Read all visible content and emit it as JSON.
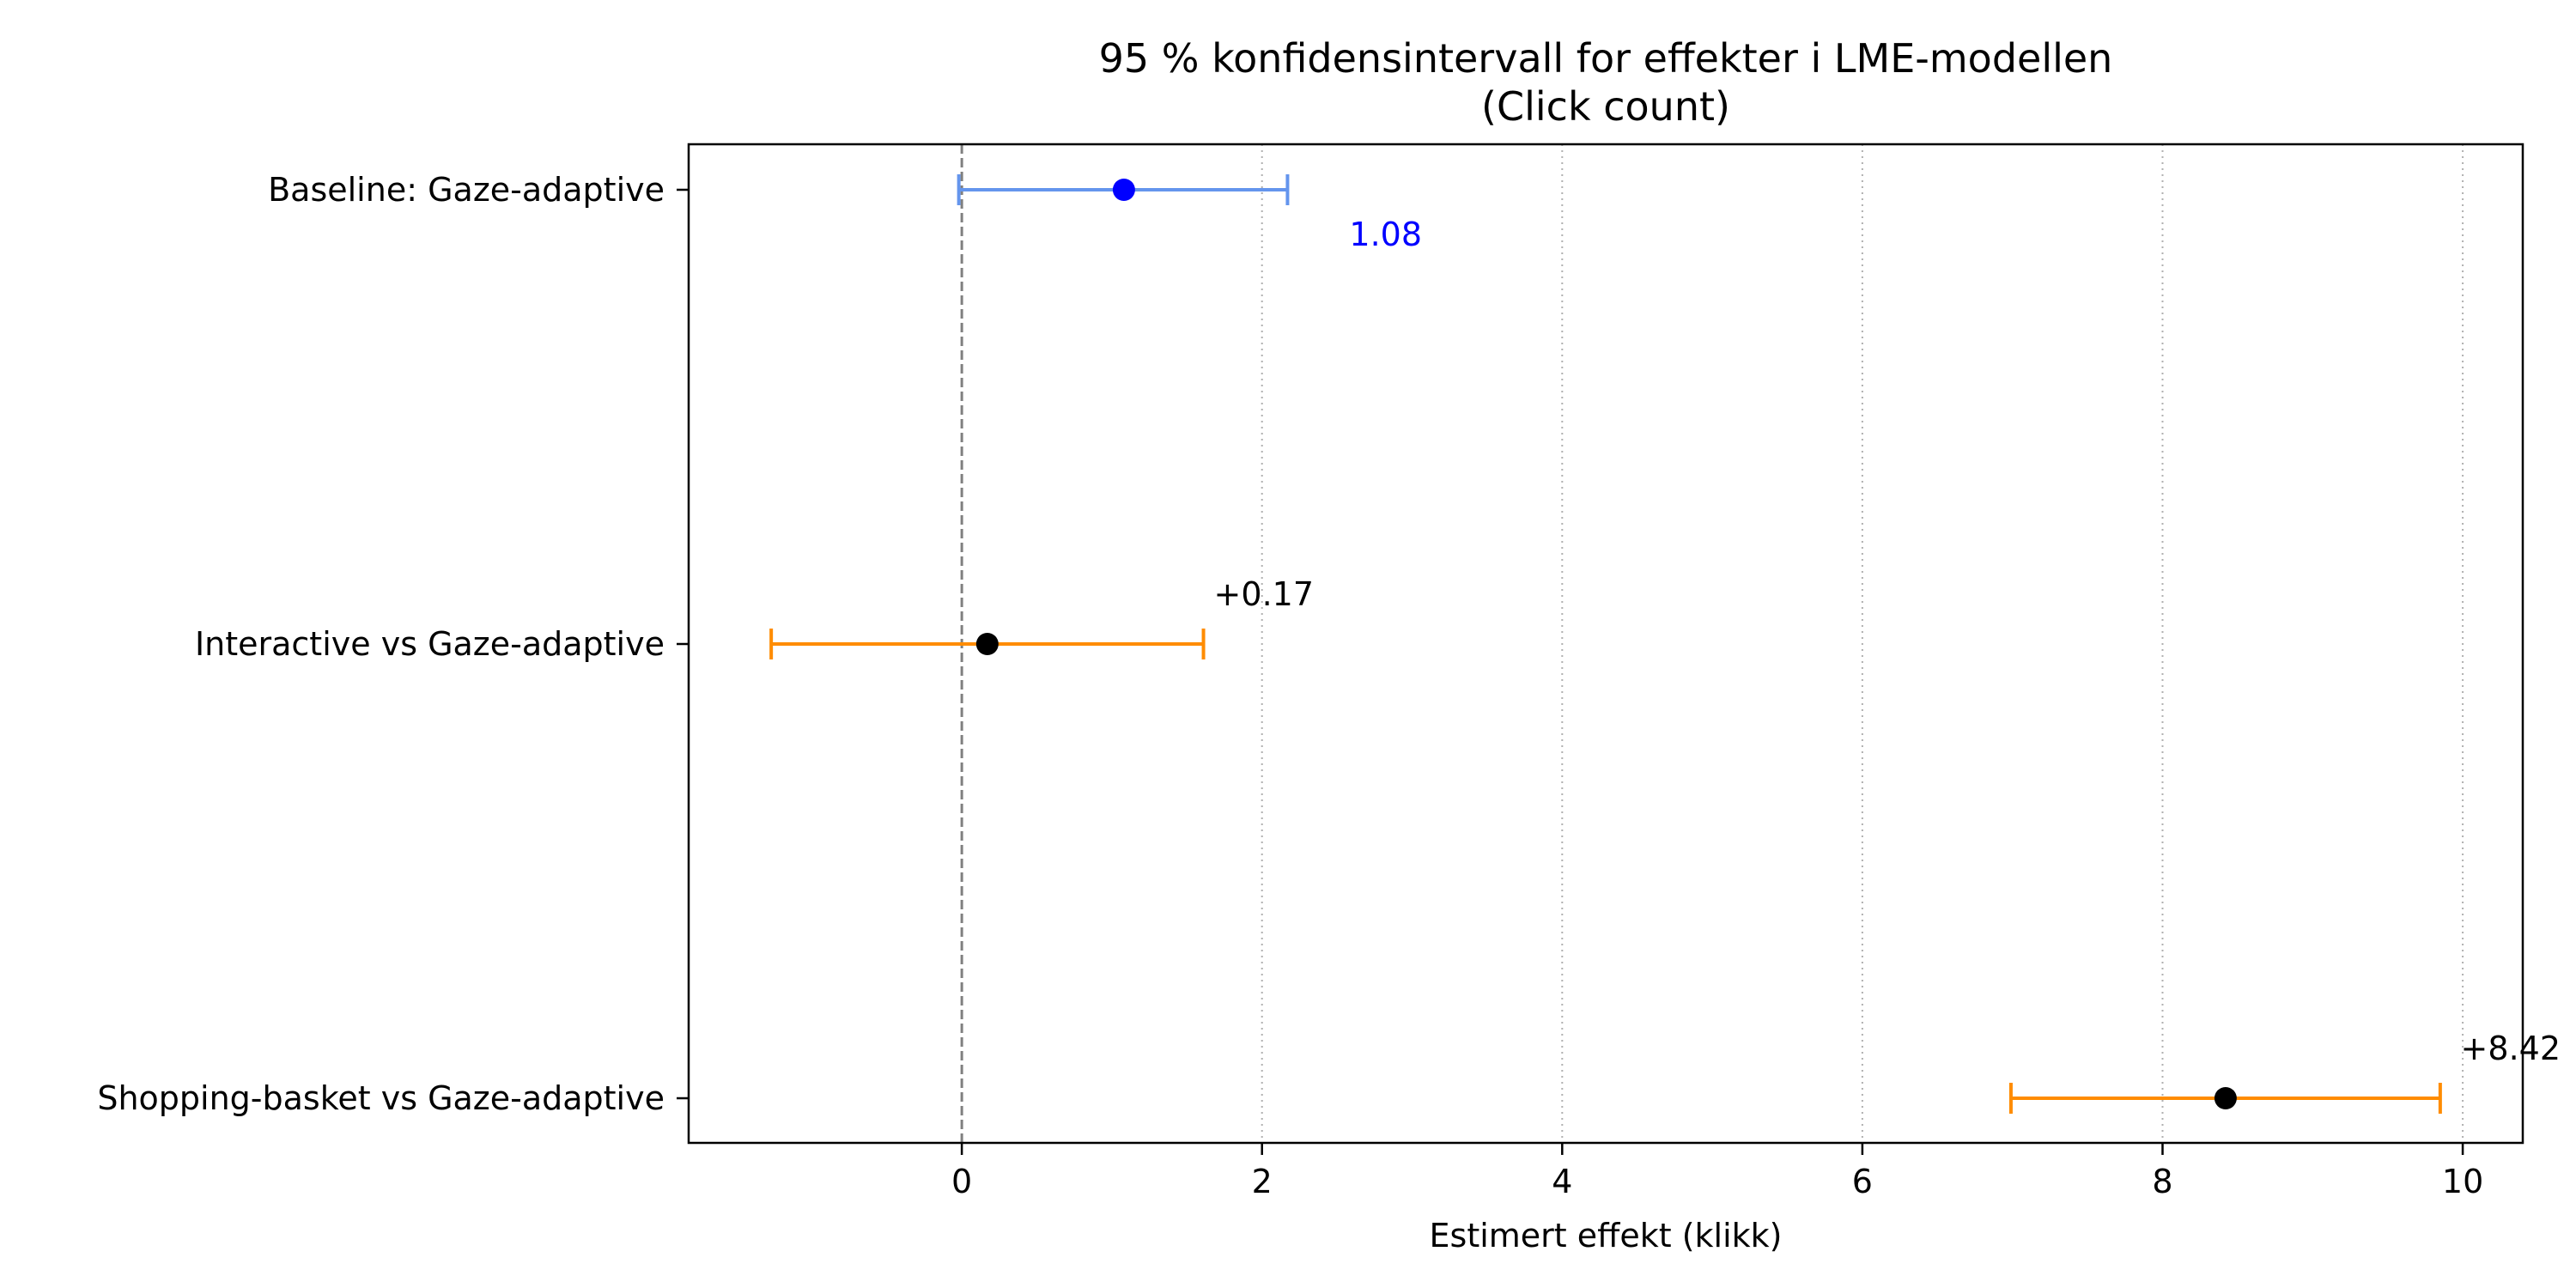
{
  "chart_data": {
    "type": "forest",
    "title": "95 % konfidensintervall for effekter i LME-modellen",
    "subtitle": "(Click count)",
    "xlabel": "Estimert effekt (klikk)",
    "ylabel": "",
    "xlim": [
      -1.82,
      10.4
    ],
    "x_ticks": [
      0,
      2,
      4,
      6,
      8,
      10
    ],
    "grid": {
      "x": true,
      "y": false,
      "style": "dotted"
    },
    "reference_line": {
      "x": 0,
      "style": "dashed",
      "color": "#808080"
    },
    "rows": [
      {
        "label": "Baseline: Gaze-adaptive",
        "estimate": 1.08,
        "ci_low": -0.02,
        "ci_high": 2.17,
        "annotation": "1.08",
        "annotation_color": "#0000ff",
        "point_color": "#0000ff",
        "ci_color": "#6495ed"
      },
      {
        "label": "Interactive vs Gaze-adaptive",
        "estimate": 0.17,
        "ci_low": -1.27,
        "ci_high": 1.61,
        "annotation": "+0.17",
        "annotation_color": "#000000",
        "point_color": "#000000",
        "ci_color": "#ff8c00"
      },
      {
        "label": "Shopping-basket vs Gaze-adaptive",
        "estimate": 8.42,
        "ci_low": 6.99,
        "ci_high": 9.85,
        "annotation": "+8.42",
        "annotation_color": "#000000",
        "point_color": "#000000",
        "ci_color": "#ff8c00"
      }
    ]
  }
}
